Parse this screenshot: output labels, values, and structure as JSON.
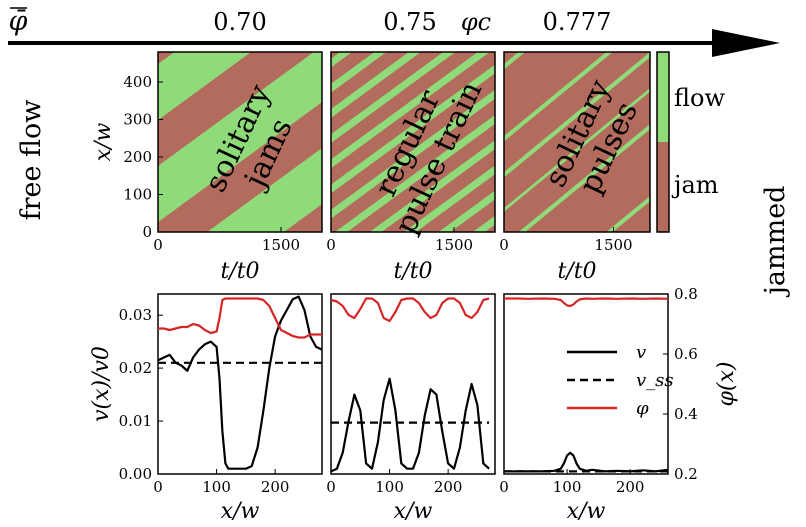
{
  "axis_arrow": {
    "label": "φ̄",
    "markers": [
      {
        "value": "0.70"
      },
      {
        "value": "0.75"
      },
      {
        "value": "φc"
      },
      {
        "value": "0.777"
      }
    ]
  },
  "side_labels": {
    "left": "free flow",
    "right": "jammed"
  },
  "colorbar": {
    "flow": "flow",
    "jam": "jam",
    "flow_color": "#8fdb7a",
    "jam_color": "#b36b5e"
  },
  "panel_labels": [
    "solitary\njams",
    "regular\npulse train",
    "solitary\npulses"
  ],
  "chart_data": [
    {
      "type": "heatmap",
      "title": "",
      "regime": "solitary jams",
      "phi_bar": 0.7,
      "xlabel": "t/t0",
      "ylabel": "x/w",
      "xlim": [
        0,
        2000
      ],
      "ylim": [
        0,
        480
      ],
      "xticks": [
        0,
        1500
      ],
      "yticks": [
        0,
        100,
        200,
        300,
        400
      ],
      "states": [
        "flow",
        "jam"
      ],
      "band_period_t": 1700,
      "band_slope_x_per_t": -0.16,
      "jam_fraction": 0.45
    },
    {
      "type": "heatmap",
      "title": "",
      "regime": "regular pulse train",
      "phi_bar": 0.75,
      "xlabel": "t/t0",
      "ylabel": "",
      "xlim": [
        0,
        2000
      ],
      "ylim": [
        0,
        480
      ],
      "xticks": [
        0,
        1500
      ],
      "states": [
        "flow",
        "jam"
      ],
      "band_period_t": 420,
      "band_slope_x_per_t": -0.16,
      "flow_fraction": 0.35
    },
    {
      "type": "heatmap",
      "title": "",
      "regime": "solitary pulses",
      "phi_bar": 0.777,
      "xlabel": "t/t0",
      "ylabel": "",
      "xlim": [
        0,
        2000
      ],
      "ylim": [
        0,
        480
      ],
      "xticks": [
        0,
        1500
      ],
      "states": [
        "flow",
        "jam"
      ],
      "pulse_width_t": 90,
      "band_slope_x_per_t": -0.16
    },
    {
      "type": "line",
      "title": "",
      "xlabel": "x/w",
      "ylabel": "v(x)/v0",
      "ylabel_right": "φ(x)",
      "xlim": [
        0,
        280
      ],
      "ylim": [
        0,
        0.034
      ],
      "ylim_right": [
        0.2,
        0.8
      ],
      "xticks": [
        0,
        100,
        200
      ],
      "yticks": [
        0.0,
        0.01,
        0.02,
        0.03
      ],
      "yticks_right": [
        0.2,
        0.4,
        0.6,
        0.8
      ],
      "x": [
        0,
        10,
        20,
        30,
        40,
        50,
        60,
        70,
        80,
        90,
        100,
        105,
        110,
        115,
        120,
        130,
        140,
        150,
        160,
        170,
        180,
        190,
        200,
        210,
        220,
        230,
        240,
        250,
        260,
        270,
        280
      ],
      "series": [
        {
          "name": "v",
          "values": [
            0.0215,
            0.022,
            0.0225,
            0.021,
            0.0205,
            0.0195,
            0.022,
            0.0235,
            0.0245,
            0.025,
            0.024,
            0.018,
            0.008,
            0.002,
            0.001,
            0.001,
            0.001,
            0.001,
            0.0015,
            0.005,
            0.012,
            0.02,
            0.026,
            0.029,
            0.031,
            0.033,
            0.0335,
            0.031,
            0.026,
            0.024,
            0.0235
          ]
        },
        {
          "name": "v_ss",
          "values": [
            0.021,
            0.021,
            0.021,
            0.021,
            0.021,
            0.021,
            0.021,
            0.021,
            0.021,
            0.021,
            0.021,
            0.021,
            0.021,
            0.021,
            0.021,
            0.021,
            0.021,
            0.021,
            0.021,
            0.021,
            0.021,
            0.021,
            0.021,
            0.021,
            0.021,
            0.021,
            0.021,
            0.021,
            0.021,
            0.021,
            0.021
          ]
        },
        {
          "name": "φ",
          "values": [
            0.685,
            0.685,
            0.68,
            0.685,
            0.69,
            0.69,
            0.7,
            0.695,
            0.68,
            0.67,
            0.675,
            0.72,
            0.78,
            0.785,
            0.785,
            0.785,
            0.785,
            0.785,
            0.785,
            0.785,
            0.78,
            0.76,
            0.72,
            0.68,
            0.67,
            0.66,
            0.655,
            0.655,
            0.665,
            0.665,
            0.665
          ]
        }
      ]
    },
    {
      "type": "line",
      "title": "",
      "xlabel": "x/w",
      "ylabel": "",
      "xlim": [
        0,
        280
      ],
      "ylim": [
        0,
        0.034
      ],
      "ylim_right": [
        0.2,
        0.8
      ],
      "xticks": [
        0,
        100,
        200
      ],
      "x": [
        0,
        10,
        20,
        30,
        40,
        50,
        60,
        70,
        80,
        90,
        100,
        110,
        120,
        130,
        140,
        150,
        160,
        170,
        180,
        190,
        200,
        210,
        220,
        230,
        240,
        250,
        260,
        270
      ],
      "series": [
        {
          "name": "v",
          "values": [
            0.0005,
            0.001,
            0.004,
            0.01,
            0.015,
            0.012,
            0.002,
            0.001,
            0.006,
            0.014,
            0.018,
            0.012,
            0.002,
            0.001,
            0.001,
            0.004,
            0.011,
            0.016,
            0.015,
            0.008,
            0.002,
            0.001,
            0.005,
            0.012,
            0.017,
            0.013,
            0.002,
            0.001
          ]
        },
        {
          "name": "v_ss",
          "values": [
            0.0097,
            0.0097,
            0.0097,
            0.0097,
            0.0097,
            0.0097,
            0.0097,
            0.0097,
            0.0097,
            0.0097,
            0.0097,
            0.0097,
            0.0097,
            0.0097,
            0.0097,
            0.0097,
            0.0097,
            0.0097,
            0.0097,
            0.0097,
            0.0097,
            0.0097,
            0.0097,
            0.0097,
            0.0097,
            0.0097,
            0.0097,
            0.0097
          ]
        },
        {
          "name": "φ",
          "values": [
            0.78,
            0.775,
            0.76,
            0.73,
            0.72,
            0.75,
            0.785,
            0.785,
            0.77,
            0.72,
            0.71,
            0.74,
            0.78,
            0.785,
            0.785,
            0.77,
            0.74,
            0.72,
            0.73,
            0.77,
            0.785,
            0.785,
            0.77,
            0.73,
            0.72,
            0.74,
            0.78,
            0.785
          ]
        }
      ]
    },
    {
      "type": "line",
      "title": "",
      "xlabel": "x/w",
      "ylabel": "",
      "xlim": [
        0,
        260
      ],
      "ylim": [
        0,
        0.034
      ],
      "ylim_right": [
        0.2,
        0.8
      ],
      "xticks": [
        0,
        100,
        200
      ],
      "legend": {
        "position": "right",
        "entries": [
          {
            "label": "v",
            "style": "solid",
            "color": "#000000"
          },
          {
            "label": "v_ss",
            "style": "dashed",
            "color": "#000000"
          },
          {
            "label": "φ",
            "style": "solid",
            "color": "#d62728"
          }
        ]
      },
      "x": [
        0,
        20,
        40,
        60,
        80,
        90,
        95,
        100,
        105,
        110,
        115,
        120,
        130,
        140,
        160,
        180,
        200,
        220,
        240,
        260
      ],
      "series": [
        {
          "name": "v",
          "values": [
            0.0005,
            0.0005,
            0.0005,
            0.0005,
            0.0006,
            0.001,
            0.002,
            0.0035,
            0.004,
            0.0035,
            0.002,
            0.001,
            0.0006,
            0.0008,
            0.0005,
            0.0006,
            0.0005,
            0.0007,
            0.0005,
            0.0008
          ]
        },
        {
          "name": "v_ss",
          "values": [
            0.0005,
            0.0005,
            0.0005,
            0.0005,
            0.0005,
            0.0005,
            0.0005,
            0.0005,
            0.0005,
            0.0005,
            0.0005,
            0.0005,
            0.0005,
            0.0005,
            0.0005,
            0.0005,
            0.0005,
            0.0005,
            0.0005,
            0.0005
          ]
        },
        {
          "name": "φ",
          "values": [
            0.785,
            0.785,
            0.784,
            0.785,
            0.784,
            0.78,
            0.77,
            0.762,
            0.76,
            0.765,
            0.775,
            0.782,
            0.785,
            0.784,
            0.785,
            0.784,
            0.785,
            0.784,
            0.785,
            0.784
          ]
        }
      ]
    }
  ]
}
